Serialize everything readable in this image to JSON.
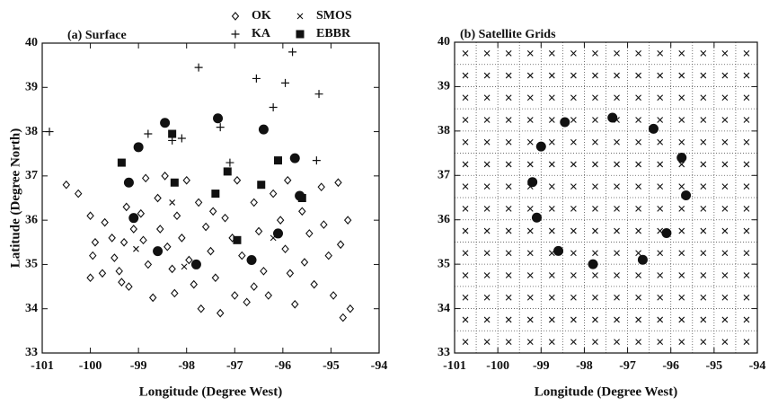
{
  "chart_data": [
    {
      "type": "scatter",
      "title": "(a) Surface",
      "xlabel": "Longitude (Degree West)",
      "ylabel": "Latitude (Degree North)",
      "xlim": [
        -101,
        -94
      ],
      "ylim": [
        33,
        40
      ],
      "xticks": [
        -101,
        -100,
        -99,
        -98,
        -97,
        -96,
        -95,
        -94
      ],
      "yticks": [
        33,
        34,
        35,
        36,
        37,
        38,
        39,
        40
      ],
      "grid": false,
      "series": [
        {
          "name": "OK",
          "marker": "diamond",
          "color": "#111111",
          "x": [
            -100.5,
            -100.25,
            -100.0,
            -99.9,
            -99.95,
            -100.0,
            -99.7,
            -99.55,
            -99.5,
            -99.4,
            -99.35,
            -99.2,
            -99.3,
            -99.25,
            -99.1,
            -98.95,
            -98.9,
            -98.8,
            -98.7,
            -98.85,
            -98.6,
            -98.55,
            -98.4,
            -98.3,
            -98.25,
            -98.2,
            -98.1,
            -97.95,
            -97.85,
            -97.75,
            -97.6,
            -97.5,
            -97.4,
            -97.3,
            -97.2,
            -97.05,
            -97.0,
            -96.95,
            -96.85,
            -96.75,
            -96.6,
            -96.5,
            -96.4,
            -96.3,
            -96.2,
            -96.05,
            -95.95,
            -95.85,
            -95.75,
            -95.6,
            -95.55,
            -95.45,
            -95.35,
            -95.2,
            -95.15,
            -95.05,
            -94.95,
            -94.85,
            -94.8,
            -94.75,
            -94.65,
            -94.6,
            -98.0,
            -97.45,
            -96.6,
            -97.7,
            -98.45,
            -99.75,
            -95.9
          ],
          "values": [
            36.8,
            36.6,
            36.1,
            35.5,
            35.2,
            34.7,
            35.95,
            35.6,
            35.15,
            34.85,
            34.6,
            34.5,
            35.5,
            36.3,
            35.8,
            36.15,
            35.55,
            35.0,
            34.25,
            36.95,
            36.5,
            35.8,
            35.4,
            34.9,
            34.35,
            36.1,
            35.6,
            35.1,
            34.55,
            36.4,
            35.85,
            35.3,
            34.7,
            33.9,
            36.05,
            35.6,
            34.3,
            36.9,
            35.2,
            34.15,
            36.4,
            35.75,
            34.85,
            34.3,
            36.6,
            36.0,
            35.35,
            34.8,
            34.1,
            36.2,
            35.05,
            35.7,
            34.55,
            36.75,
            35.9,
            35.2,
            34.3,
            36.85,
            35.45,
            33.8,
            36.0,
            34.0,
            36.9,
            36.2,
            34.5,
            34.0,
            37.0,
            34.8,
            36.9
          ]
        },
        {
          "name": "SMOS",
          "marker": "cross",
          "color": "#111111",
          "x": [
            -99.05,
            -98.3,
            -98.05,
            -96.2
          ],
          "values": [
            35.35,
            36.4,
            34.95,
            35.6
          ]
        },
        {
          "name": "KA",
          "marker": "plus",
          "color": "#111111",
          "x": [
            -100.85,
            -98.8,
            -98.1,
            -97.75,
            -97.3,
            -97.1,
            -96.55,
            -96.2,
            -95.95,
            -95.8,
            -95.25,
            -95.3,
            -98.3
          ],
          "values": [
            38.0,
            37.95,
            37.85,
            39.45,
            38.1,
            37.3,
            39.2,
            38.55,
            39.1,
            39.8,
            38.85,
            37.35,
            37.8
          ]
        },
        {
          "name": "EBBR",
          "marker": "square",
          "color": "#111111",
          "x": [
            -99.35,
            -98.3,
            -98.25,
            -97.4,
            -97.15,
            -96.95,
            -96.45,
            -96.1,
            -95.6
          ],
          "values": [
            37.3,
            37.95,
            36.85,
            36.6,
            37.1,
            35.55,
            36.8,
            37.35,
            36.5
          ]
        },
        {
          "marker": "circle",
          "color": "#111111",
          "x": [
            -99.2,
            -99.0,
            -99.1,
            -98.45,
            -98.6,
            -97.8,
            -97.35,
            -96.65,
            -96.4,
            -96.1,
            -95.75,
            -95.65
          ],
          "values": [
            36.85,
            37.65,
            36.05,
            38.2,
            35.3,
            35.0,
            38.3,
            35.1,
            38.05,
            35.7,
            37.4,
            36.55
          ]
        }
      ]
    },
    {
      "type": "scatter",
      "title": "(b) Satellite Grids",
      "xlabel": "Longitude (Degree West)",
      "xlim": [
        -101,
        -94
      ],
      "ylim": [
        33,
        40
      ],
      "xticks": [
        -101,
        -100,
        -99,
        -98,
        -97,
        -96,
        -95,
        -94
      ],
      "yticks": [
        33,
        34,
        35,
        36,
        37,
        38,
        39,
        40
      ],
      "grid": true,
      "minor_xticks": [
        -100.5,
        -99.5,
        -98.5,
        -97.5,
        -96.5,
        -95.5,
        -94.5
      ],
      "minor_yticks": [
        33.5,
        34.5,
        35.5,
        36.5,
        37.5,
        38.5,
        39.5
      ],
      "series": [
        {
          "marker": "cross",
          "color": "#111111",
          "x": [
            -100.75,
            -100.25,
            -99.75,
            -99.25,
            -98.75,
            -98.25,
            -97.75,
            -97.25,
            -96.75,
            -96.25,
            -95.75,
            -95.25,
            -94.75,
            -94.25,
            -100.75,
            -100.25,
            -99.75,
            -99.25,
            -98.75,
            -98.25,
            -97.75,
            -97.25,
            -96.75,
            -96.25,
            -95.75,
            -95.25,
            -94.75,
            -94.25,
            -100.75,
            -100.25,
            -99.75,
            -99.25,
            -98.75,
            -98.25,
            -97.75,
            -97.25,
            -96.75,
            -96.25,
            -95.75,
            -95.25,
            -94.75,
            -94.25,
            -100.75,
            -100.25,
            -99.75,
            -99.25,
            -98.75,
            -98.25,
            -97.75,
            -97.25,
            -96.75,
            -96.25,
            -95.75,
            -95.25,
            -94.75,
            -94.25,
            -100.75,
            -100.25,
            -99.75,
            -99.25,
            -98.75,
            -98.25,
            -97.75,
            -97.25,
            -96.75,
            -96.25,
            -95.75,
            -95.25,
            -94.75,
            -94.25,
            -100.75,
            -100.25,
            -99.75,
            -99.25,
            -98.75,
            -98.25,
            -97.75,
            -97.25,
            -96.75,
            -96.25,
            -95.75,
            -95.25,
            -94.75,
            -94.25,
            -100.75,
            -100.25,
            -99.75,
            -99.25,
            -98.75,
            -98.25,
            -97.75,
            -97.25,
            -96.75,
            -96.25,
            -95.75,
            -95.25,
            -94.75,
            -94.25,
            -100.75,
            -100.25,
            -99.75,
            -99.25,
            -98.75,
            -98.25,
            -97.75,
            -97.25,
            -96.75,
            -96.25,
            -95.75,
            -95.25,
            -94.75,
            -94.25,
            -100.75,
            -100.25,
            -99.75,
            -99.25,
            -98.75,
            -98.25,
            -97.75,
            -97.25,
            -96.75,
            -96.25,
            -95.75,
            -95.25,
            -94.75,
            -94.25,
            -100.75,
            -100.25,
            -99.75,
            -99.25,
            -98.75,
            -98.25,
            -97.75,
            -97.25,
            -96.75,
            -96.25,
            -95.75,
            -95.25,
            -94.75,
            -94.25,
            -100.75,
            -100.25,
            -99.75,
            -99.25,
            -98.75,
            -98.25,
            -97.75,
            -97.25,
            -96.75,
            -96.25,
            -95.75,
            -95.25,
            -94.75,
            -94.25,
            -100.75,
            -100.25,
            -99.75,
            -99.25,
            -98.75,
            -98.25,
            -97.75,
            -97.25,
            -96.75,
            -96.25,
            -95.75,
            -95.25,
            -94.75,
            -94.25,
            -100.75,
            -100.25,
            -99.75,
            -99.25,
            -98.75,
            -98.25,
            -97.75,
            -97.25,
            -96.75,
            -96.25,
            -95.75,
            -95.25,
            -94.75,
            -94.25,
            -100.75,
            -100.25,
            -99.75,
            -99.25,
            -98.75,
            -98.25,
            -97.75,
            -97.25,
            -96.75,
            -96.25,
            -95.75,
            -95.25,
            -94.75,
            -94.25
          ],
          "values": [
            33.25,
            33.25,
            33.25,
            33.25,
            33.25,
            33.25,
            33.25,
            33.25,
            33.25,
            33.25,
            33.25,
            33.25,
            33.25,
            33.25,
            33.75,
            33.75,
            33.75,
            33.75,
            33.75,
            33.75,
            33.75,
            33.75,
            33.75,
            33.75,
            33.75,
            33.75,
            33.75,
            33.75,
            34.25,
            34.25,
            34.25,
            34.25,
            34.25,
            34.25,
            34.25,
            34.25,
            34.25,
            34.25,
            34.25,
            34.25,
            34.25,
            34.25,
            34.75,
            34.75,
            34.75,
            34.75,
            34.75,
            34.75,
            34.75,
            34.75,
            34.75,
            34.75,
            34.75,
            34.75,
            34.75,
            34.75,
            35.25,
            35.25,
            35.25,
            35.25,
            35.25,
            35.25,
            35.25,
            35.25,
            35.25,
            35.25,
            35.25,
            35.25,
            35.25,
            35.25,
            35.75,
            35.75,
            35.75,
            35.75,
            35.75,
            35.75,
            35.75,
            35.75,
            35.75,
            35.75,
            35.75,
            35.75,
            35.75,
            35.75,
            36.25,
            36.25,
            36.25,
            36.25,
            36.25,
            36.25,
            36.25,
            36.25,
            36.25,
            36.25,
            36.25,
            36.25,
            36.25,
            36.25,
            36.75,
            36.75,
            36.75,
            36.75,
            36.75,
            36.75,
            36.75,
            36.75,
            36.75,
            36.75,
            36.75,
            36.75,
            36.75,
            36.75,
            37.25,
            37.25,
            37.25,
            37.25,
            37.25,
            37.25,
            37.25,
            37.25,
            37.25,
            37.25,
            37.25,
            37.25,
            37.25,
            37.25,
            37.75,
            37.75,
            37.75,
            37.75,
            37.75,
            37.75,
            37.75,
            37.75,
            37.75,
            37.75,
            37.75,
            37.75,
            37.75,
            37.75,
            38.25,
            38.25,
            38.25,
            38.25,
            38.25,
            38.25,
            38.25,
            38.25,
            38.25,
            38.25,
            38.25,
            38.25,
            38.25,
            38.25,
            38.75,
            38.75,
            38.75,
            38.75,
            38.75,
            38.75,
            38.75,
            38.75,
            38.75,
            38.75,
            38.75,
            38.75,
            38.75,
            38.75,
            39.25,
            39.25,
            39.25,
            39.25,
            39.25,
            39.25,
            39.25,
            39.25,
            39.25,
            39.25,
            39.25,
            39.25,
            39.25,
            39.25,
            39.75,
            39.75,
            39.75,
            39.75,
            39.75,
            39.75,
            39.75,
            39.75,
            39.75,
            39.75,
            39.75,
            39.75,
            39.75,
            39.75
          ]
        },
        {
          "marker": "circle",
          "color": "#111111",
          "x": [
            -99.2,
            -99.0,
            -99.1,
            -98.45,
            -98.6,
            -97.8,
            -97.35,
            -96.65,
            -96.4,
            -96.1,
            -95.75,
            -95.65
          ],
          "values": [
            36.85,
            37.65,
            36.05,
            38.2,
            35.3,
            35.0,
            38.3,
            35.1,
            38.05,
            35.7,
            37.4,
            36.55
          ]
        }
      ]
    }
  ]
}
